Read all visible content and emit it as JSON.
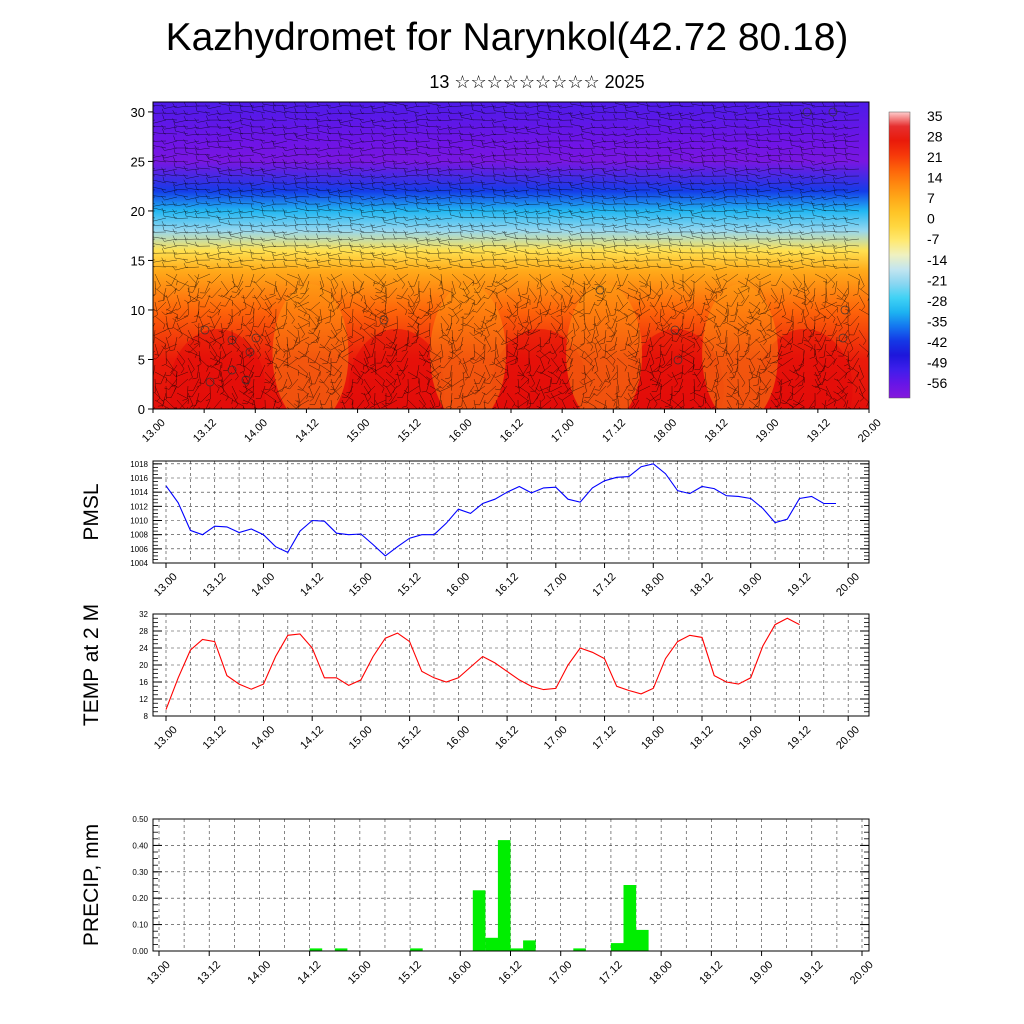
{
  "title": "Kazhydromet for Narynkol(42.72 80.18)",
  "subtitle": "13 ☆☆☆☆☆☆☆☆☆ 2025",
  "colors": {
    "pmsl_line": "#0000ff",
    "temp_line": "#ff0000",
    "precip_bar": "#00ee00",
    "frame": "#000000"
  },
  "chart_data": [
    {
      "type": "heatmap",
      "name": "cross-section",
      "title": "",
      "x_tick_labels": [
        "13.00",
        "13.12",
        "14.00",
        "14.12",
        "15.00",
        "15.12",
        "16.00",
        "16.12",
        "17.00",
        "17.12",
        "18.00",
        "18.12",
        "19.00",
        "19.12",
        "20.00"
      ],
      "y_tick_labels": [
        "0",
        "5",
        "10",
        "15",
        "20",
        "25",
        "30"
      ],
      "ylim": [
        0,
        31
      ],
      "colorbar_labels": [
        "35",
        "28",
        "21",
        "14",
        "7",
        "0",
        "-7",
        "-14",
        "-21",
        "-28",
        "-35",
        "-42",
        "-49",
        "-56"
      ],
      "colorbar_range": [
        -60,
        38
      ],
      "temperature_profile": [
        {
          "y": 0,
          "value": 30
        },
        {
          "y": 5,
          "value": 28
        },
        {
          "y": 10,
          "value": 18
        },
        {
          "y": 14,
          "value": 8
        },
        {
          "y": 16,
          "value": -4
        },
        {
          "y": 18,
          "value": -20
        },
        {
          "y": 20,
          "value": -30
        },
        {
          "y": 22,
          "value": -40
        },
        {
          "y": 25,
          "value": -58
        },
        {
          "y": 27,
          "value": -56
        },
        {
          "y": 31,
          "value": -52
        }
      ],
      "overlay": "wind barbs"
    },
    {
      "type": "line",
      "name": "pmsl",
      "ylabel": "PMSL",
      "x_tick_labels": [
        "13.00",
        "13.12",
        "14.00",
        "14.12",
        "15.00",
        "15.12",
        "16.00",
        "16.12",
        "17.00",
        "17.12",
        "18.00",
        "18.12",
        "19.00",
        "19.12",
        "20.00"
      ],
      "y_tick_labels": [
        "1004",
        "1006",
        "1008",
        "1010",
        "1012",
        "1014",
        "1016",
        "1018"
      ],
      "ylim": [
        1004,
        1018.4
      ],
      "x": [
        0,
        3,
        6,
        9,
        12,
        15,
        18,
        21,
        24,
        27,
        30,
        33,
        36,
        39,
        42,
        45,
        48,
        51,
        54,
        57,
        60,
        63,
        66,
        69,
        72,
        75,
        78,
        81,
        84,
        87,
        90,
        93,
        96,
        99,
        102,
        105,
        108,
        111,
        114,
        117,
        120,
        123,
        126,
        129,
        132,
        135,
        138,
        141,
        144,
        147,
        150,
        153,
        156,
        159,
        162,
        165
      ],
      "values": [
        1014.9,
        1012.5,
        1008.6,
        1008.0,
        1009.2,
        1009.1,
        1008.3,
        1008.8,
        1008.0,
        1006.3,
        1005.5,
        1008.5,
        1010.0,
        1009.9,
        1008.2,
        1008.0,
        1008.1,
        1006.6,
        1005.0,
        1006.3,
        1007.5,
        1008.0,
        1008.0,
        1009.6,
        1011.6,
        1011.0,
        1012.4,
        1013.0,
        1014.0,
        1014.8,
        1013.9,
        1014.6,
        1014.7,
        1013.0,
        1012.6,
        1014.6,
        1015.6,
        1016.1,
        1016.2,
        1017.6,
        1018.0,
        1016.6,
        1014.2,
        1013.8,
        1014.8,
        1014.5,
        1013.5,
        1013.4,
        1013.1,
        1011.7,
        1009.7,
        1010.2,
        1013.1,
        1013.4,
        1012.4,
        1012.4
      ]
    },
    {
      "type": "line",
      "name": "temperature",
      "ylabel": "TEMP at 2 M",
      "x_tick_labels": [
        "13.00",
        "13.12",
        "14.00",
        "14.12",
        "15.00",
        "15.12",
        "16.00",
        "16.12",
        "17.00",
        "17.12",
        "18.00",
        "18.12",
        "19.00",
        "19.12",
        "20.00"
      ],
      "y_tick_labels": [
        "8",
        "12",
        "16",
        "20",
        "24",
        "28",
        "32"
      ],
      "ylim": [
        8,
        32
      ],
      "x": [
        0,
        3,
        6,
        9,
        12,
        15,
        18,
        21,
        24,
        27,
        30,
        33,
        36,
        39,
        42,
        45,
        48,
        51,
        54,
        57,
        60,
        63,
        66,
        69,
        72,
        75,
        78,
        81,
        84,
        87,
        90,
        93,
        96,
        99,
        102,
        105,
        108,
        111,
        114,
        117,
        120,
        123,
        126,
        129,
        132,
        135,
        138,
        141,
        144,
        147,
        150,
        153,
        156
      ],
      "values": [
        9.5,
        17.0,
        23.5,
        26.0,
        25.5,
        17.5,
        15.5,
        14.3,
        15.5,
        22.0,
        27.0,
        27.3,
        24.0,
        17.0,
        17.0,
        15.2,
        16.5,
        22.0,
        26.3,
        27.5,
        25.5,
        18.5,
        17.0,
        16.0,
        17.0,
        19.5,
        22.0,
        20.5,
        18.5,
        16.5,
        15.0,
        14.2,
        14.5,
        20.0,
        24.0,
        23.0,
        21.5,
        15.0,
        14.0,
        13.2,
        14.5,
        21.5,
        25.5,
        27.0,
        26.5,
        17.5,
        16.0,
        15.5,
        17.0,
        24.5,
        29.5,
        31.0,
        29.5
      ]
    },
    {
      "type": "bar",
      "name": "precipitation",
      "ylabel": "PRECIP, mm",
      "x_tick_labels": [
        "13.00",
        "13.12",
        "14.00",
        "14.12",
        "15.00",
        "15.12",
        "16.00",
        "16.12",
        "17.00",
        "17.12",
        "18.00",
        "18.12",
        "19.00",
        "19.12",
        "20.00"
      ],
      "y_tick_labels": [
        "0.00",
        "0.10",
        "0.20",
        "0.30",
        "0.40",
        "0.50"
      ],
      "ylim": [
        0,
        0.5
      ],
      "bar_width_hours": 3,
      "x": [
        36,
        42,
        60,
        75,
        78,
        81,
        84,
        87,
        90,
        99,
        108,
        111,
        114
      ],
      "values": [
        0.01,
        0.01,
        0.01,
        0.23,
        0.05,
        0.42,
        0.01,
        0.04,
        0.0,
        0.01,
        0.03,
        0.25,
        0.08
      ]
    }
  ]
}
